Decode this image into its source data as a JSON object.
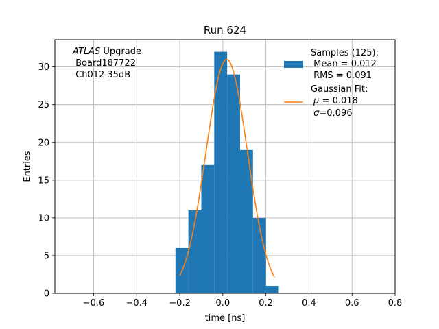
{
  "chart_data": {
    "type": "bar",
    "title": "Run 624",
    "xlabel": "time [ns]",
    "ylabel": "Entries",
    "xlim": [
      -0.78,
      0.8
    ],
    "ylim": [
      0,
      33.6
    ],
    "xticks": [
      -0.6,
      -0.4,
      -0.2,
      0.0,
      0.2,
      0.4,
      0.6,
      0.8
    ],
    "xtick_labels": [
      "−0.6",
      "−0.4",
      "−0.2",
      "0.0",
      "0.2",
      "0.4",
      "0.6",
      "0.8"
    ],
    "yticks": [
      0,
      5,
      10,
      15,
      20,
      25,
      30
    ],
    "ytick_labels": [
      "0",
      "5",
      "10",
      "15",
      "20",
      "25",
      "30"
    ],
    "grid": true,
    "histogram": {
      "color": "#1f77b4",
      "bins": [
        {
          "x0": -0.22,
          "x1": -0.16,
          "count": 6
        },
        {
          "x0": -0.16,
          "x1": -0.1,
          "count": 11
        },
        {
          "x0": -0.1,
          "x1": -0.04,
          "count": 17
        },
        {
          "x0": -0.04,
          "x1": 0.02,
          "count": 32
        },
        {
          "x0": 0.02,
          "x1": 0.08,
          "count": 29
        },
        {
          "x0": 0.08,
          "x1": 0.14,
          "count": 19
        },
        {
          "x0": 0.14,
          "x1": 0.2,
          "count": 10
        },
        {
          "x0": 0.2,
          "x1": 0.26,
          "count": 1
        }
      ]
    },
    "fit": {
      "color": "#ff7f0e",
      "mu": 0.018,
      "sigma": 0.096,
      "amplitude": 31,
      "x_range": [
        -0.2,
        0.24
      ]
    },
    "annotation": {
      "line1_italic": "ATLAS",
      "line1_rest": " Upgrade",
      "line2": " Board187722",
      "line3": " Ch012 35dB"
    },
    "legend": {
      "location": "top-right",
      "samples": {
        "line1": "Samples (125):",
        "line2": " Mean = 0.012",
        "line3": " RMS = 0.091"
      },
      "fit": {
        "line1": "Gaussian Fit:",
        "line2_sym": "μ",
        "line2_rest": " = 0.018",
        "line3_sym": "σ",
        "line3_rest": "=0.096"
      }
    }
  }
}
